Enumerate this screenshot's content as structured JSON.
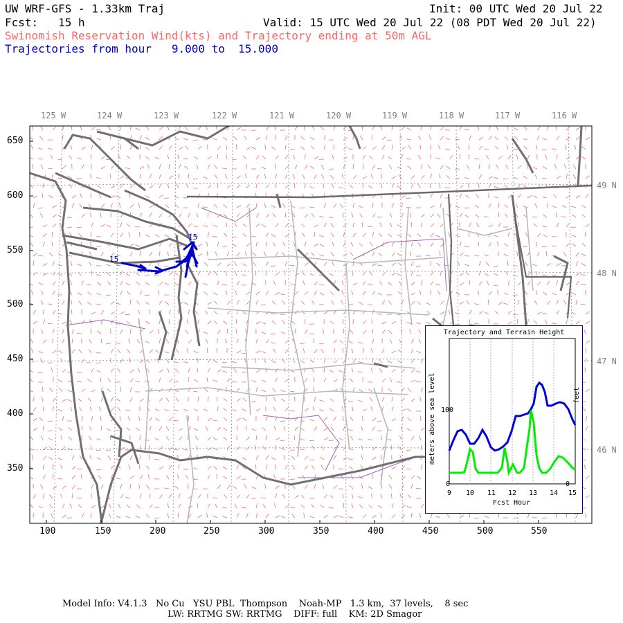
{
  "header": {
    "model_title": "UW WRF-GFS - 1.33km Traj",
    "init": "Init: 00 UTC Wed 20 Jul 22",
    "fcst": "Fcst:   15 h",
    "valid": "Valid: 15 UTC Wed 20 Jul 22 (08 PDT Wed 20 Jul 22)",
    "subtitle": "Swinomish Reservation Wind(kts) and Trajectory ending at 50m AGL",
    "traj_range": "Trajectories from hour   9.000 to  15.000"
  },
  "map": {
    "lon_labels": [
      "125 W",
      "124 W",
      "123 W",
      "122 W",
      "121 W",
      "120 W",
      "119 W",
      "118 W",
      "117 W",
      "116 W"
    ],
    "lat_labels": [
      "49 N",
      "48 N",
      "47 N",
      "46 N"
    ],
    "x_ticks": [
      "100",
      "150",
      "200",
      "250",
      "300",
      "350",
      "400",
      "450",
      "500",
      "550"
    ],
    "y_ticks": [
      "650",
      "600",
      "550",
      "500",
      "450",
      "400",
      "350"
    ],
    "trajectory_labels": [
      "15",
      "15"
    ],
    "colors": {
      "coast": "#707070",
      "roads": "#b0b0b0",
      "rivers": "#a060c0",
      "wind_barbs": "#ff6666",
      "trajectory": "#0000cc",
      "grid": "#888888"
    }
  },
  "inset": {
    "title": "Trajectory and Terrain Height",
    "ylabel_left": "meters above sea level",
    "ylabel_right": "feet",
    "xlabel": "Fcst Hour",
    "x_ticks": [
      "9",
      "10",
      "11",
      "12",
      "13",
      "14",
      "15"
    ],
    "y_tick_left": "100",
    "zero_left": "0",
    "zero_right": "0",
    "series": {
      "trajectory_color": "#0000dd",
      "terrain_color": "#00ee00"
    }
  },
  "footer": {
    "line1": "Model Info: V4.1.3   No Cu   YSU PBL  Thompson    Noah-MP   1.3 km,  37 levels,    8 sec",
    "line2": "LW: RRTMG SW: RRTMG    DIFF: full    KM: 2D Smagor"
  }
}
